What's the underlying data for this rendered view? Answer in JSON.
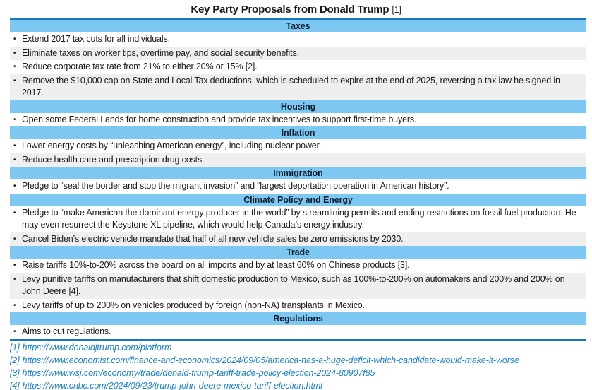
{
  "colors": {
    "header_band_blue": "#7CC8F2",
    "rule_blue": "#1878BF",
    "footnote_link_blue": "#1B82C9",
    "shaded_row_gray": "#EFEFEF",
    "text_color": "#1A1A1A"
  },
  "title": {
    "text": "Key Party Proposals from Donald Trump",
    "ref": "[1]"
  },
  "sections": [
    {
      "title": "Taxes",
      "items": [
        "Extend 2017 tax cuts for all individuals.",
        "Eliminate taxes on worker tips, overtime pay, and social security benefits.",
        "Reduce corporate tax rate from 21% to either 20% or 15% [2].",
        "Remove the $10,000 cap on State and Local Tax deductions, which is scheduled to expire at the end of 2025, reversing a tax law he signed in 2017."
      ]
    },
    {
      "title": "Housing",
      "items": [
        "Open some Federal Lands for home construction and provide tax incentives to support first-time buyers."
      ]
    },
    {
      "title": "Inflation",
      "items": [
        "Lower energy costs by “unleashing American energy”, including nuclear power.",
        "Reduce health care and prescription drug costs."
      ]
    },
    {
      "title": "Immigration",
      "items": [
        "Pledge to “seal the border and stop the migrant invasion” and “largest deportation operation in American history”."
      ]
    },
    {
      "title": "Climate Policy and Energy",
      "items": [
        "Pledge to “make American the dominant energy producer in the world” by streamlining permits and ending restrictions on fossil fuel production. He may even resurrect the Keystone XL pipeline, which would help Canada’s energy industry.",
        "Cancel Biden’s electric vehicle mandate that half of all new vehicle sales be zero emissions by 2030."
      ]
    },
    {
      "title": "Trade",
      "items": [
        "Raise tariffs 10%-to-20% across the board on all imports and by at least 60% on Chinese products [3].",
        "Levy punitive tariffs on manufacturers that shift domestic production to Mexico, such as 100%-to-200% on automakers and 200% and 200% on John Deere [4].",
        "Levy tariffs of up to 200% on vehicles produced by foreign (non-NA) transplants in Mexico."
      ]
    },
    {
      "title": "Regulations",
      "items": [
        "Aims to cut regulations."
      ]
    }
  ],
  "footnotes": [
    {
      "label": "[1]",
      "url": "https://www.donaldjtrump.com/platform"
    },
    {
      "label": "[2]",
      "url": "https://www.economist.com/finance-and-economics/2024/09/05/america-has-a-huge-deficit-which-candidate-would-make-it-worse"
    },
    {
      "label": "[3]",
      "url": "https://www.wsj.com/economy/trade/donald-trump-tariff-trade-policy-election-2024-80907f85"
    },
    {
      "label": "[4]",
      "url": "https://www.cnbc.com/2024/09/23/trump-john-deere-mexico-tariff-election.html"
    }
  ]
}
